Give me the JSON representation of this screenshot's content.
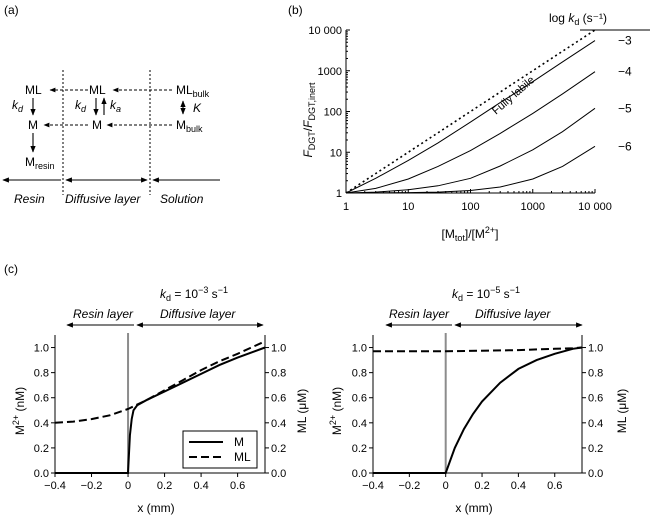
{
  "panels": {
    "a": {
      "panel_label": "(a)",
      "resin_column": {
        "ml": "ML",
        "kd_k": "k",
        "kd_sub": "d",
        "m": "M",
        "m_resin_base": "M",
        "m_resin_sub": "resin"
      },
      "diffusive_column": {
        "ml": "ML",
        "kd_k": "k",
        "kd_sub": "d",
        "ka_k": "k",
        "ka_sub": "a",
        "m": "M"
      },
      "solution_column": {
        "ml_base": "ML",
        "ml_sub": "bulk",
        "k": "K",
        "m_base": "M",
        "m_sub": "bulk"
      },
      "region_labels": [
        "Resin",
        "Diffusive layer",
        "Solution"
      ]
    },
    "b": {
      "panel_label": "(b)",
      "legend_title": {
        "pre": "log ",
        "k": "k",
        "sub": "d",
        "post": " (s⁻¹)"
      },
      "fully_labile_label": "Fully labile",
      "series_labels": [
        "−3",
        "−4",
        "−5",
        "−6"
      ],
      "ylabel": {
        "f1": "F",
        "s1": "DGT",
        "slash": "/",
        "f2": "F",
        "s2": "DGT,inert"
      },
      "xlabel": {
        "p1": "[M",
        "s1": "tot",
        "p2": "]/[M",
        "sup": "2+",
        "p3": "]"
      },
      "xticks": [
        "1",
        "10",
        "100",
        "1000",
        "10 000"
      ],
      "yticks": [
        "1",
        "10",
        "100",
        "1000",
        "10 000"
      ]
    },
    "c": {
      "panel_label": "(c)",
      "left_title": {
        "k": "k",
        "sub": "d",
        "mid": " = 10",
        "exp": "−3",
        "unit": " s",
        "unit_exp": "−1"
      },
      "right_title": {
        "k": "k",
        "sub": "d",
        "mid": " = 10",
        "exp": "−5",
        "unit": " s",
        "unit_exp": "−1"
      },
      "resin_layer_label": "Resin layer",
      "diffusive_layer_label": "Diffusive layer",
      "ylabel_left": {
        "pre": "M",
        "sup": "2+",
        "post": " (nM)"
      },
      "ylabel_right": "ML (μM)",
      "xlabel": "x (mm)",
      "legend": [
        "M",
        "ML"
      ],
      "xticks": [
        "−0.4",
        "−0.2",
        "0",
        "0.2",
        "0.4",
        "0.6"
      ],
      "yticks": [
        "0.0",
        "0.2",
        "0.4",
        "0.6",
        "0.8",
        "1.0"
      ]
    }
  },
  "chart_data": [
    {
      "type": "line",
      "panel": "b",
      "x_scale": "log",
      "y_scale": "log",
      "xlim": [
        1,
        10000
      ],
      "ylim": [
        1,
        10000
      ],
      "series": [
        {
          "name": "Fully labile",
          "style": "dotted",
          "x": [
            1,
            10000
          ],
          "y": [
            1,
            10000
          ]
        },
        {
          "name": "−3",
          "style": "solid",
          "x": [
            1,
            3,
            10,
            30,
            100,
            300,
            1000,
            3000,
            10000
          ],
          "y": [
            1,
            2.3,
            6.3,
            17,
            55,
            165,
            540,
            1650,
            5500
          ]
        },
        {
          "name": "−4",
          "style": "solid",
          "x": [
            1,
            3,
            10,
            30,
            100,
            300,
            1000,
            3000,
            10000
          ],
          "y": [
            1,
            1.3,
            2.2,
            4.5,
            11,
            29,
            90,
            270,
            950
          ]
        },
        {
          "name": "−5",
          "style": "solid",
          "x": [
            1,
            3,
            10,
            30,
            100,
            300,
            1000,
            3000,
            10000
          ],
          "y": [
            1,
            1.05,
            1.2,
            1.5,
            2.3,
            4.6,
            11.5,
            32,
            120
          ]
        },
        {
          "name": "−6",
          "style": "solid",
          "x": [
            1,
            10,
            30,
            100,
            300,
            1000,
            3000,
            10000
          ],
          "y": [
            1,
            1.02,
            1.05,
            1.15,
            1.4,
            2.2,
            4.5,
            14
          ]
        }
      ]
    },
    {
      "type": "line",
      "panel": "c-left",
      "xlim": [
        -0.4,
        0.75
      ],
      "ylim": [
        0,
        1.1
      ],
      "y2lim": [
        0,
        1.1
      ],
      "series": [
        {
          "name": "M",
          "style": "solid",
          "x": [
            -0.4,
            -0.2,
            -0.01,
            0,
            0.01,
            0.02,
            0.03,
            0.05,
            0.1,
            0.2,
            0.3,
            0.4,
            0.5,
            0.6,
            0.75
          ],
          "y": [
            0,
            0,
            0,
            0,
            0.3,
            0.43,
            0.5,
            0.54,
            0.58,
            0.65,
            0.72,
            0.79,
            0.86,
            0.92,
            1.0
          ]
        },
        {
          "name": "ML",
          "style": "dashed",
          "x": [
            -0.4,
            -0.3,
            -0.2,
            -0.1,
            0,
            0.1,
            0.2,
            0.3,
            0.4,
            0.5,
            0.6,
            0.75
          ],
          "y": [
            0.4,
            0.41,
            0.43,
            0.46,
            0.51,
            0.58,
            0.66,
            0.74,
            0.82,
            0.89,
            0.95,
            1.05
          ]
        }
      ]
    },
    {
      "type": "line",
      "panel": "c-right",
      "xlim": [
        -0.4,
        0.75
      ],
      "ylim": [
        0,
        1.1
      ],
      "y2lim": [
        0,
        1.1
      ],
      "series": [
        {
          "name": "M",
          "style": "solid",
          "x": [
            -0.4,
            -0.2,
            0,
            0.05,
            0.1,
            0.15,
            0.2,
            0.3,
            0.4,
            0.5,
            0.6,
            0.7,
            0.75
          ],
          "y": [
            0,
            0,
            0,
            0.2,
            0.35,
            0.47,
            0.57,
            0.72,
            0.83,
            0.9,
            0.95,
            0.99,
            1.0
          ]
        },
        {
          "name": "ML",
          "style": "dashed",
          "x": [
            -0.4,
            0,
            0.4,
            0.6,
            0.7,
            0.75
          ],
          "y": [
            0.97,
            0.97,
            0.98,
            0.99,
            0.995,
            1.0
          ]
        }
      ]
    }
  ]
}
